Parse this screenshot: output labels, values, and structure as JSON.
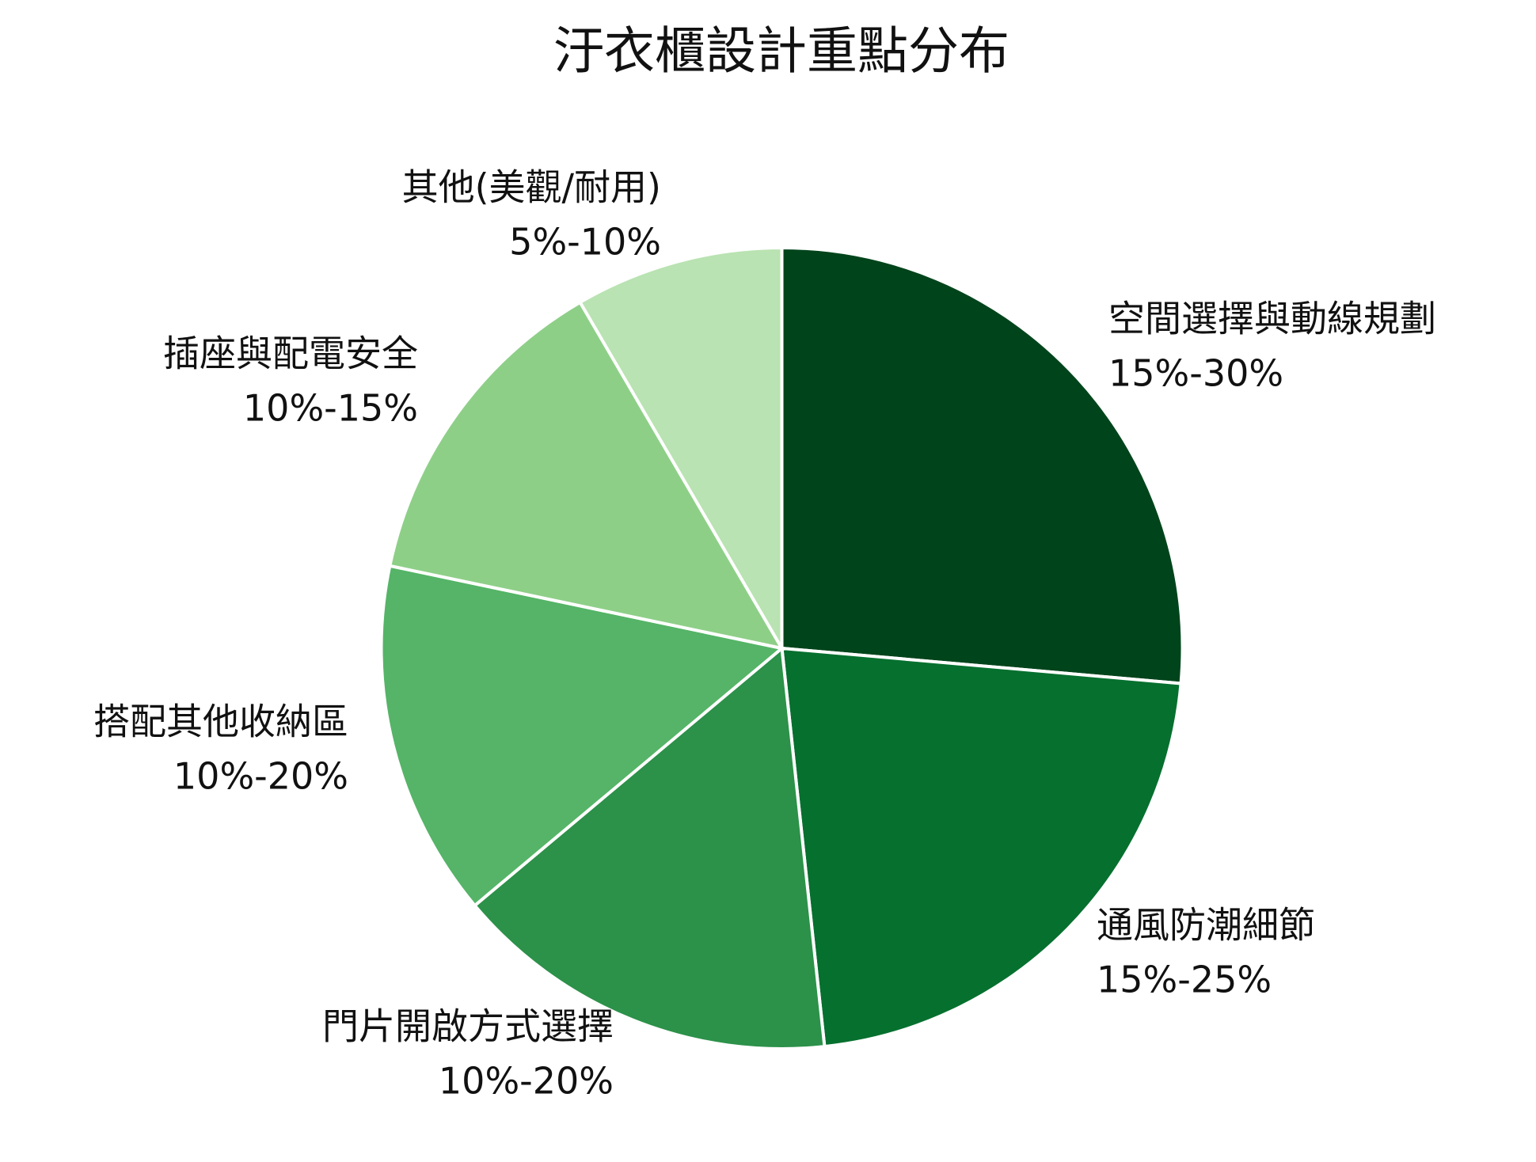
{
  "chart_data": {
    "type": "pie",
    "title": "汙衣櫃設計重點分布",
    "categories": [
      "空間選擇與動線規劃",
      "通風防潮細節",
      "門片開啟方式選擇",
      "搭配其他收納區",
      "插座與配電安全",
      "其他(美觀/耐用)"
    ],
    "ranges": [
      "15%-30%",
      "15%-25%",
      "10%-20%",
      "10%-20%",
      "10%-15%",
      "5%-10%"
    ],
    "values": [
      26.4,
      21.9,
      15.6,
      14.4,
      13.3,
      8.4
    ],
    "colors": [
      "#00441b",
      "#06702f",
      "#2c9149",
      "#55b467",
      "#8ecf88",
      "#b9e3b2"
    ]
  }
}
